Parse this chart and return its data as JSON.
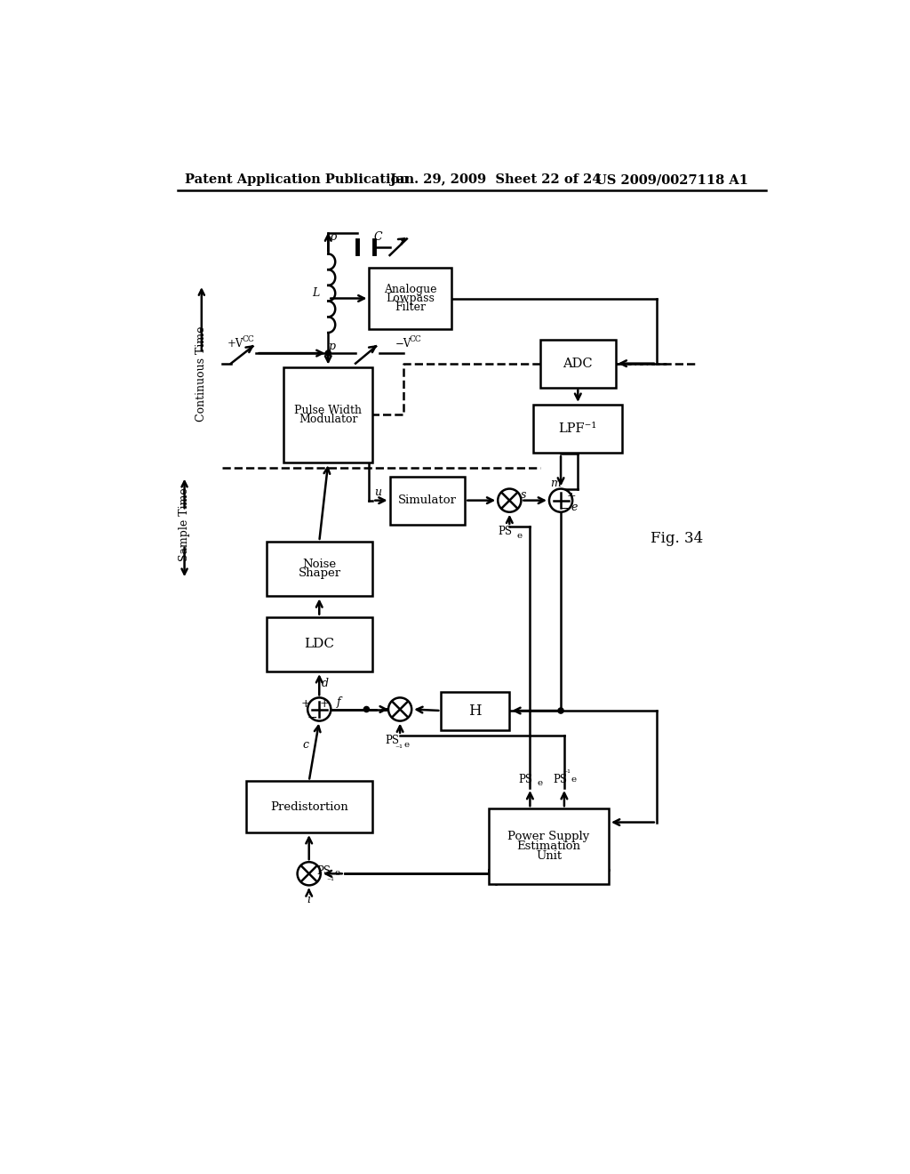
{
  "header_left": "Patent Application Publication",
  "header_mid": "Jan. 29, 2009  Sheet 22 of 24",
  "header_right": "US 2009/0027118 A1",
  "fig_label": "Fig. 34",
  "background": "#ffffff",
  "line_color": "#000000"
}
